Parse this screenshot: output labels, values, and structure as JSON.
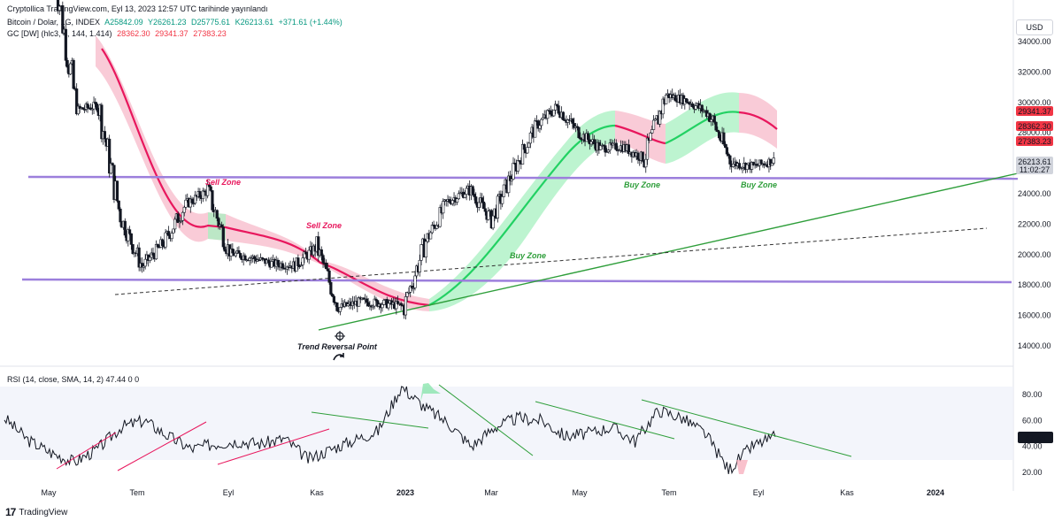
{
  "header": {
    "publish_line": "Cryptollica TradingView.com, Eyl 13, 2023 12:57 UTC tarihinde yayınlandı",
    "symbol": "Bitcoin / Dolar, 1G, INDEX",
    "ohlc": {
      "a": "A25842.09",
      "y": "Y26261.23",
      "d": "D25775.61",
      "k": "K26213.61",
      "chg": "+371.61 (+1.44%)"
    },
    "indicator": {
      "name": "GC [DW] (hlc3, 4, 144, 1.414)",
      "v1": "28362.30",
      "v2": "29341.37",
      "v3": "27383.23"
    },
    "currency": "USD"
  },
  "rsi_label": "RSI (14, close, SMA, 14, 2)  47.44  0  0",
  "footer": {
    "brand": "TradingView"
  },
  "price_badges": [
    {
      "text": "29341.37",
      "color": "#f23645"
    },
    {
      "text": "28362.30",
      "color": "#f23645"
    },
    {
      "text": "27383.23",
      "color": "#f23645"
    },
    {
      "text": "26213.61",
      "sub": "11:02:27",
      "color": "#d1d4dc"
    }
  ],
  "rsi_badge": "47.44",
  "colors": {
    "bull": "#089981",
    "bear": "#f23645",
    "pink_band": "#f7b9c9",
    "green_band": "#a7f0c0",
    "zone_line": "#9c7fdc",
    "trend": "#2e9e3a"
  },
  "chart_data": [
    {
      "type": "line",
      "subtype": "candlestick",
      "ylim": [
        13000,
        35500
      ],
      "y_ticks": [
        14000,
        16000,
        18000,
        20000,
        22000,
        24000,
        26000,
        28000,
        30000,
        32000,
        34000
      ],
      "y_tick_labels": [
        "14000.00",
        "16000.00",
        "18000.00",
        "20000.00",
        "22000.00",
        "24000.00",
        "26000.00",
        "28000.00",
        "30000.00",
        "32000.00",
        "34000.00"
      ],
      "x_tick_labels": [
        "May",
        "Tem",
        "Eyl",
        "Kas",
        "2023",
        "Mar",
        "May",
        "Tem",
        "Eyl",
        "Kas",
        "2024"
      ],
      "x": [
        "2022-05-01",
        "2022-05-15",
        "2022-06-01",
        "2022-06-15",
        "2022-07-01",
        "2022-07-15",
        "2022-08-01",
        "2022-08-15",
        "2022-09-01",
        "2022-09-15",
        "2022-10-01",
        "2022-10-15",
        "2022-11-01",
        "2022-11-15",
        "2022-12-01",
        "2022-12-15",
        "2023-01-01",
        "2023-01-15",
        "2023-02-01",
        "2023-02-15",
        "2023-03-01",
        "2023-03-15",
        "2023-04-01",
        "2023-04-15",
        "2023-05-01",
        "2023-05-15",
        "2023-06-01",
        "2023-06-15",
        "2023-07-01",
        "2023-07-15",
        "2023-08-01",
        "2023-08-15",
        "2023-09-01",
        "2023-09-12"
      ],
      "series": [
        {
          "values": [
            38500,
            29500,
            29800,
            22500,
            19200,
            20800,
            23300,
            24200,
            20100,
            19800,
            19400,
            19300,
            20500,
            16500,
            16900,
            16800,
            16600,
            20900,
            23500,
            24300,
            22300,
            25500,
            28400,
            29700,
            28000,
            27000,
            27100,
            26300,
            30500,
            30100,
            29200,
            26000,
            25800,
            26213
          ]
        }
      ],
      "annotations": [
        "Sell Zone",
        "Sell Zone",
        "Buy Zone",
        "Buy Zone",
        "Buy Zone",
        "Trend Reversal Point"
      ],
      "horizontal_levels": [
        25250,
        18350
      ]
    },
    {
      "type": "line",
      "title": "RSI (14, close, SMA, 14, 2)",
      "ylim": [
        15,
        90
      ],
      "y_ticks": [
        20,
        40,
        60,
        80
      ],
      "y_tick_labels": [
        "20.00",
        "40.00",
        "60.00",
        "80.00"
      ],
      "series": [
        {
          "values": [
            62,
            45,
            35,
            28,
            38,
            55,
            60,
            48,
            38,
            42,
            44,
            42,
            46,
            30,
            38,
            45,
            52,
            86,
            70,
            58,
            40,
            55,
            62,
            60,
            48,
            50,
            55,
            44,
            68,
            62,
            50,
            22,
            40,
            47.44
          ]
        }
      ]
    }
  ]
}
